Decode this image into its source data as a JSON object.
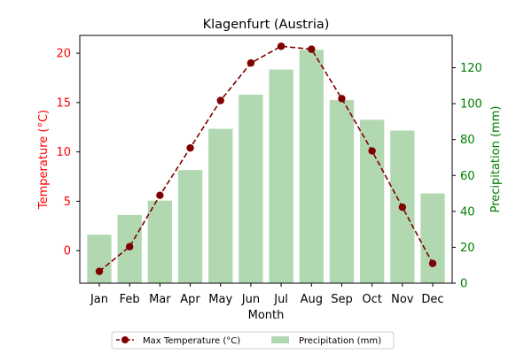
{
  "chart_data": {
    "type": "bar",
    "title": "Klagenfurt (Austria)",
    "xlabel": "Month",
    "ylabel_left": "Temperature (°C)",
    "ylabel_right": "Precipitation (mm)",
    "categories": [
      "Jan",
      "Feb",
      "Mar",
      "Apr",
      "May",
      "Jun",
      "Jul",
      "Aug",
      "Sep",
      "Oct",
      "Nov",
      "Dec"
    ],
    "ylim_left": [
      -3.3,
      21.8
    ],
    "yticks_left": [
      0,
      5,
      10,
      15,
      20
    ],
    "ylim_right": [
      0,
      138
    ],
    "yticks_right": [
      0,
      20,
      40,
      60,
      80,
      100,
      120
    ],
    "series": [
      {
        "name": "Max Temperature (°C)",
        "kind": "line",
        "axis": "left",
        "values": [
          -2.1,
          0.4,
          5.6,
          10.4,
          15.2,
          19.0,
          20.7,
          20.4,
          15.4,
          10.1,
          4.4,
          -1.3
        ]
      },
      {
        "name": "Precipitation (mm)",
        "kind": "bar",
        "axis": "right",
        "values": [
          27,
          38,
          46,
          63,
          86,
          105,
          119,
          130,
          102,
          91,
          85,
          50
        ]
      }
    ],
    "legend_position": "bottom-center",
    "colors": {
      "temperature_line": "#800000",
      "left_axis": "#ff0000",
      "precip_bar": "#b2d8b2",
      "right_axis": "#008000"
    }
  }
}
